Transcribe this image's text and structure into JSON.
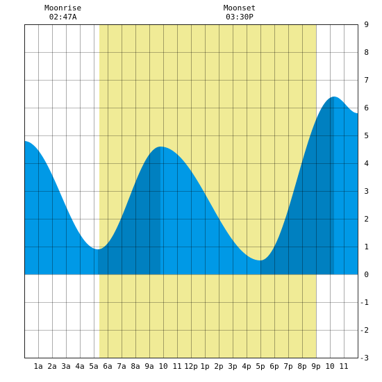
{
  "chart_data": {
    "type": "area",
    "x_unit": "hour",
    "xlim": [
      0,
      24
    ],
    "ylim": [
      -3,
      9
    ],
    "y_ticks": [
      -3,
      -2,
      -1,
      0,
      1,
      2,
      3,
      4,
      5,
      6,
      7,
      8,
      9
    ],
    "x_tick_labels": [
      "1a",
      "2a",
      "3a",
      "4a",
      "5a",
      "6a",
      "7a",
      "8a",
      "9a",
      "10",
      "11",
      "12p",
      "1p",
      "2p",
      "3p",
      "4p",
      "5p",
      "6p",
      "7p",
      "8p",
      "9p",
      "10",
      "11"
    ],
    "daylight": [
      5.4,
      21.0
    ],
    "events": [
      {
        "label": "Moonrise",
        "time": "02:47A",
        "hour": 2.78
      },
      {
        "label": "Moonset",
        "time": "03:30P",
        "hour": 15.5
      }
    ],
    "extremes": [
      {
        "type": "low",
        "hour": 5.3,
        "value": 0.9
      },
      {
        "type": "high",
        "hour": 9.8,
        "value": 4.6
      },
      {
        "type": "low",
        "hour": 17.0,
        "value": 0.5
      },
      {
        "type": "high",
        "hour": 22.3,
        "value": 6.4
      }
    ],
    "start_value": 4.8,
    "end_value": 5.8,
    "grid": true,
    "colors": {
      "daylight": "#f0eb96",
      "rising_tide": "#0080c0",
      "falling_tide": "#0099e6",
      "grid": "#000000"
    }
  }
}
